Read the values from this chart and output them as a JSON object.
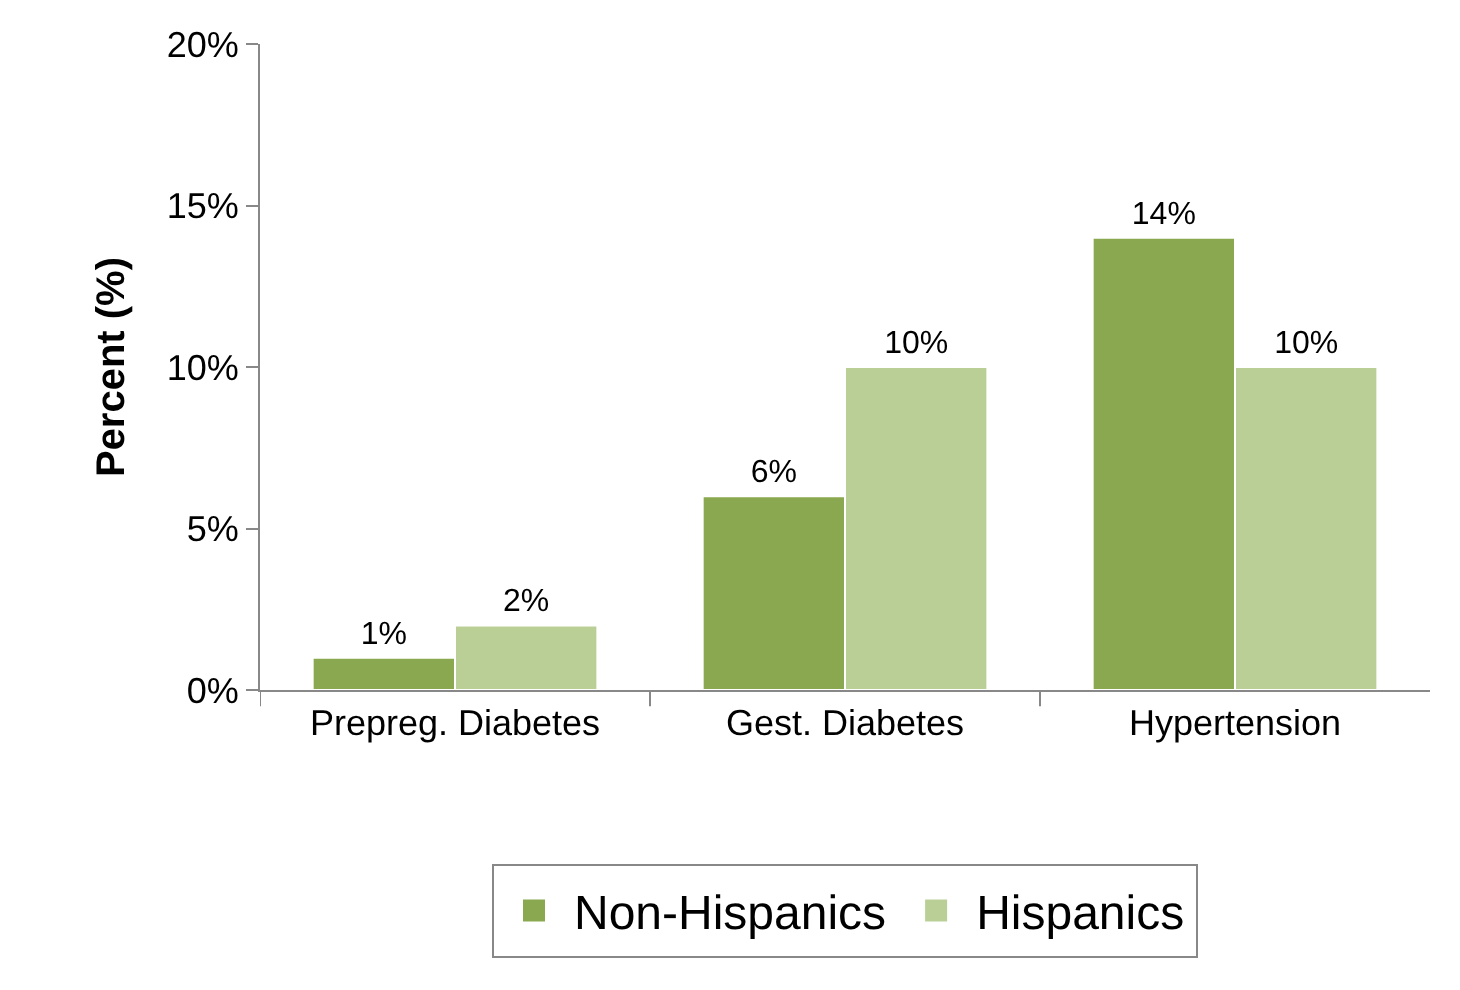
{
  "chart_data": {
    "type": "bar",
    "ylabel": "Percent (%)",
    "categories": [
      "Prepreg. Diabetes",
      "Gest. Diabetes",
      "Hypertension"
    ],
    "series": [
      {
        "name": "Non-Hispanics",
        "color": "#8aa84f",
        "values": [
          1,
          6,
          14
        ],
        "value_labels": [
          "1%",
          "6%",
          "14%"
        ]
      },
      {
        "name": "Hispanics",
        "color": "#b9cf96",
        "values": [
          2,
          10,
          10
        ],
        "value_labels": [
          "2%",
          "10%",
          "10%"
        ]
      }
    ],
    "ylim": [
      0,
      20
    ],
    "yticks": [
      {
        "value": 0,
        "label": "0%"
      },
      {
        "value": 5,
        "label": "5%"
      },
      {
        "value": 10,
        "label": "10%"
      },
      {
        "value": 15,
        "label": "15%"
      },
      {
        "value": 20,
        "label": "20%"
      }
    ],
    "grid": false,
    "legend": "bottom"
  }
}
